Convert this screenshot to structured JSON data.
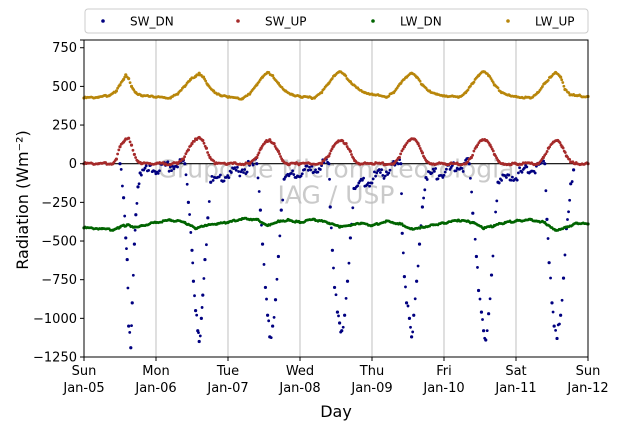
{
  "chart_data": {
    "type": "scatter",
    "title": "",
    "xlabel": "Day",
    "ylabel": "Radiation (Wm⁻²)",
    "ylim": [
      -1250,
      800
    ],
    "yticks": [
      800,
      750,
      500,
      250,
      0,
      -250,
      -500,
      -750,
      -1000,
      -1250
    ],
    "ytick_labels": [
      "750",
      "500",
      "250",
      "0",
      "−250",
      "−500",
      "−750",
      "−1000",
      "−1250"
    ],
    "xlim": [
      0,
      7
    ],
    "xticks": [
      {
        "x": 0,
        "line1": "Sun",
        "line2": "Jan-05"
      },
      {
        "x": 1,
        "line1": "Mon",
        "line2": "Jan-06"
      },
      {
        "x": 2,
        "line1": "Tue",
        "line2": "Jan-07"
      },
      {
        "x": 3,
        "line1": "Wed",
        "line2": "Jan-08"
      },
      {
        "x": 4,
        "line1": "Thu",
        "line2": "Jan-09"
      },
      {
        "x": 5,
        "line1": "Fri",
        "line2": "Jan-10"
      },
      {
        "x": 6,
        "line1": "Sat",
        "line2": "Jan-11"
      },
      {
        "x": 7,
        "line1": "Sun",
        "line2": "Jan-12"
      }
    ],
    "grid": "vertical",
    "zero_line": true,
    "legend_position": "top, outside, 4 columns",
    "watermark": [
      "Grupo de Micrometeorologia",
      "IAG / USP"
    ],
    "series": [
      {
        "name": "SW_DN",
        "color": "#000080",
        "points": [
          [
            0.5,
            0
          ],
          [
            0.55,
            -220
          ],
          [
            0.58,
            -480
          ],
          [
            0.6,
            -620
          ],
          [
            0.62,
            -1050
          ],
          [
            0.65,
            -1190
          ],
          [
            0.67,
            -900
          ],
          [
            0.7,
            -520
          ],
          [
            0.72,
            -330
          ],
          [
            0.75,
            -150
          ],
          [
            0.78,
            -60
          ],
          [
            1.4,
            0
          ],
          [
            1.45,
            -250
          ],
          [
            1.5,
            -560
          ],
          [
            1.52,
            -760
          ],
          [
            1.55,
            -950
          ],
          [
            1.58,
            -1080
          ],
          [
            1.6,
            -1150
          ],
          [
            1.63,
            -1000
          ],
          [
            1.65,
            -850
          ],
          [
            1.68,
            -620
          ],
          [
            1.72,
            -350
          ],
          [
            1.76,
            -120
          ],
          [
            2.4,
            0
          ],
          [
            2.45,
            -300
          ],
          [
            2.48,
            -520
          ],
          [
            2.52,
            -800
          ],
          [
            2.55,
            -980
          ],
          [
            2.58,
            -1120
          ],
          [
            2.62,
            -1050
          ],
          [
            2.66,
            -880
          ],
          [
            2.7,
            -600
          ],
          [
            2.74,
            -300
          ],
          [
            2.78,
            -100
          ],
          [
            3.4,
            0
          ],
          [
            3.42,
            -280
          ],
          [
            3.45,
            -560
          ],
          [
            3.48,
            -800
          ],
          [
            3.52,
            -960
          ],
          [
            3.55,
            -1030
          ],
          [
            3.58,
            -1080
          ],
          [
            3.62,
            -980
          ],
          [
            3.66,
            -760
          ],
          [
            3.7,
            -480
          ],
          [
            3.75,
            -160
          ],
          [
            4.4,
            0
          ],
          [
            4.42,
            -450
          ],
          [
            4.45,
            -730
          ],
          [
            4.48,
            -900
          ],
          [
            4.52,
            -1000
          ],
          [
            4.55,
            -1120
          ],
          [
            4.58,
            -980
          ],
          [
            4.62,
            -760
          ],
          [
            4.66,
            -520
          ],
          [
            4.7,
            -280
          ],
          [
            4.75,
            -90
          ],
          [
            5.35,
            0
          ],
          [
            5.4,
            -320
          ],
          [
            5.45,
            -600
          ],
          [
            5.48,
            -820
          ],
          [
            5.52,
            -960
          ],
          [
            5.55,
            -1080
          ],
          [
            5.58,
            -1140
          ],
          [
            5.62,
            -970
          ],
          [
            5.66,
            -720
          ],
          [
            5.7,
            -400
          ],
          [
            5.75,
            -120
          ],
          [
            6.4,
            0
          ],
          [
            6.43,
            -360
          ],
          [
            6.46,
            -640
          ],
          [
            6.5,
            -900
          ],
          [
            6.53,
            -1050
          ],
          [
            6.57,
            -1130
          ],
          [
            6.62,
            -980
          ],
          [
            6.66,
            -740
          ],
          [
            6.7,
            -420
          ],
          [
            6.76,
            -130
          ],
          [
            6.8,
            -40
          ]
        ]
      },
      {
        "name": "SW_UP",
        "color": "#a52a2a",
        "points": [
          [
            0.0,
            0
          ],
          [
            0.2,
            0
          ],
          [
            0.4,
            0
          ],
          [
            0.45,
            30
          ],
          [
            0.5,
            110
          ],
          [
            0.55,
            140
          ],
          [
            0.58,
            160
          ],
          [
            0.62,
            165
          ],
          [
            0.66,
            120
          ],
          [
            0.7,
            60
          ],
          [
            0.75,
            15
          ],
          [
            0.8,
            0
          ],
          [
            1.0,
            0
          ],
          [
            1.3,
            0
          ],
          [
            1.38,
            30
          ],
          [
            1.45,
            90
          ],
          [
            1.5,
            130
          ],
          [
            1.55,
            160
          ],
          [
            1.6,
            170
          ],
          [
            1.65,
            150
          ],
          [
            1.7,
            100
          ],
          [
            1.75,
            40
          ],
          [
            1.82,
            0
          ],
          [
            2.0,
            0
          ],
          [
            2.3,
            0
          ],
          [
            2.4,
            40
          ],
          [
            2.46,
            100
          ],
          [
            2.52,
            140
          ],
          [
            2.58,
            155
          ],
          [
            2.64,
            130
          ],
          [
            2.7,
            80
          ],
          [
            2.76,
            20
          ],
          [
            2.82,
            0
          ],
          [
            3.0,
            0
          ],
          [
            3.3,
            0
          ],
          [
            3.4,
            50
          ],
          [
            3.46,
            110
          ],
          [
            3.52,
            140
          ],
          [
            3.58,
            150
          ],
          [
            3.64,
            130
          ],
          [
            3.7,
            80
          ],
          [
            3.76,
            20
          ],
          [
            3.82,
            0
          ],
          [
            4.0,
            0
          ],
          [
            4.3,
            0
          ],
          [
            4.38,
            40
          ],
          [
            4.45,
            110
          ],
          [
            4.52,
            150
          ],
          [
            4.58,
            160
          ],
          [
            4.64,
            130
          ],
          [
            4.7,
            70
          ],
          [
            4.76,
            15
          ],
          [
            4.82,
            0
          ],
          [
            5.0,
            0
          ],
          [
            5.3,
            0
          ],
          [
            5.38,
            40
          ],
          [
            5.45,
            110
          ],
          [
            5.52,
            150
          ],
          [
            5.58,
            150
          ],
          [
            5.64,
            120
          ],
          [
            5.7,
            60
          ],
          [
            5.76,
            15
          ],
          [
            5.82,
            0
          ],
          [
            6.0,
            0
          ],
          [
            6.3,
            0
          ],
          [
            6.38,
            40
          ],
          [
            6.45,
            100
          ],
          [
            6.52,
            140
          ],
          [
            6.58,
            150
          ],
          [
            6.64,
            110
          ],
          [
            6.7,
            50
          ],
          [
            6.76,
            10
          ],
          [
            6.82,
            0
          ],
          [
            7.0,
            0
          ]
        ]
      },
      {
        "name": "LW_DN",
        "color": "#006400",
        "points": [
          [
            0.0,
            -415
          ],
          [
            0.25,
            -420
          ],
          [
            0.4,
            -430
          ],
          [
            0.5,
            -410
          ],
          [
            0.6,
            -395
          ],
          [
            0.7,
            -410
          ],
          [
            0.8,
            -400
          ],
          [
            1.0,
            -380
          ],
          [
            1.2,
            -365
          ],
          [
            1.4,
            -380
          ],
          [
            1.55,
            -420
          ],
          [
            1.7,
            -400
          ],
          [
            1.85,
            -390
          ],
          [
            2.0,
            -380
          ],
          [
            2.2,
            -355
          ],
          [
            2.4,
            -360
          ],
          [
            2.55,
            -400
          ],
          [
            2.7,
            -370
          ],
          [
            2.85,
            -365
          ],
          [
            3.0,
            -380
          ],
          [
            3.2,
            -360
          ],
          [
            3.4,
            -385
          ],
          [
            3.55,
            -410
          ],
          [
            3.7,
            -400
          ],
          [
            3.85,
            -385
          ],
          [
            4.0,
            -400
          ],
          [
            4.2,
            -370
          ],
          [
            4.4,
            -390
          ],
          [
            4.55,
            -420
          ],
          [
            4.7,
            -410
          ],
          [
            4.85,
            -395
          ],
          [
            5.0,
            -385
          ],
          [
            5.2,
            -365
          ],
          [
            5.4,
            -380
          ],
          [
            5.55,
            -420
          ],
          [
            5.7,
            -400
          ],
          [
            5.85,
            -380
          ],
          [
            6.0,
            -370
          ],
          [
            6.2,
            -360
          ],
          [
            6.4,
            -380
          ],
          [
            6.55,
            -430
          ],
          [
            6.7,
            -410
          ],
          [
            6.85,
            -385
          ],
          [
            7.0,
            -390
          ]
        ]
      },
      {
        "name": "LW_UP",
        "color": "#b8860b",
        "points": [
          [
            0.0,
            425
          ],
          [
            0.2,
            430
          ],
          [
            0.35,
            440
          ],
          [
            0.45,
            470
          ],
          [
            0.5,
            510
          ],
          [
            0.55,
            545
          ],
          [
            0.58,
            575
          ],
          [
            0.62,
            550
          ],
          [
            0.66,
            500
          ],
          [
            0.72,
            460
          ],
          [
            0.8,
            440
          ],
          [
            1.0,
            430
          ],
          [
            1.2,
            425
          ],
          [
            1.3,
            450
          ],
          [
            1.4,
            500
          ],
          [
            1.48,
            545
          ],
          [
            1.55,
            565
          ],
          [
            1.6,
            585
          ],
          [
            1.66,
            560
          ],
          [
            1.72,
            510
          ],
          [
            1.8,
            470
          ],
          [
            1.9,
            440
          ],
          [
            2.0,
            430
          ],
          [
            2.2,
            420
          ],
          [
            2.3,
            450
          ],
          [
            2.4,
            510
          ],
          [
            2.48,
            560
          ],
          [
            2.55,
            590
          ],
          [
            2.62,
            570
          ],
          [
            2.7,
            520
          ],
          [
            2.8,
            470
          ],
          [
            2.9,
            445
          ],
          [
            3.0,
            435
          ],
          [
            3.2,
            425
          ],
          [
            3.3,
            460
          ],
          [
            3.4,
            520
          ],
          [
            3.48,
            570
          ],
          [
            3.55,
            595
          ],
          [
            3.62,
            575
          ],
          [
            3.7,
            530
          ],
          [
            3.8,
            490
          ],
          [
            3.9,
            460
          ],
          [
            4.0,
            450
          ],
          [
            4.2,
            430
          ],
          [
            4.3,
            460
          ],
          [
            4.4,
            520
          ],
          [
            4.48,
            560
          ],
          [
            4.55,
            585
          ],
          [
            4.62,
            560
          ],
          [
            4.7,
            510
          ],
          [
            4.8,
            470
          ],
          [
            4.9,
            450
          ],
          [
            5.0,
            440
          ],
          [
            5.2,
            430
          ],
          [
            5.3,
            460
          ],
          [
            5.4,
            520
          ],
          [
            5.48,
            570
          ],
          [
            5.55,
            595
          ],
          [
            5.62,
            570
          ],
          [
            5.7,
            510
          ],
          [
            5.8,
            460
          ],
          [
            5.9,
            445
          ],
          [
            6.0,
            435
          ],
          [
            6.2,
            425
          ],
          [
            6.3,
            460
          ],
          [
            6.4,
            520
          ],
          [
            6.48,
            560
          ],
          [
            6.55,
            590
          ],
          [
            6.62,
            560
          ],
          [
            6.68,
            480
          ],
          [
            6.75,
            445
          ],
          [
            6.85,
            440
          ],
          [
            7.0,
            435
          ]
        ]
      }
    ]
  }
}
